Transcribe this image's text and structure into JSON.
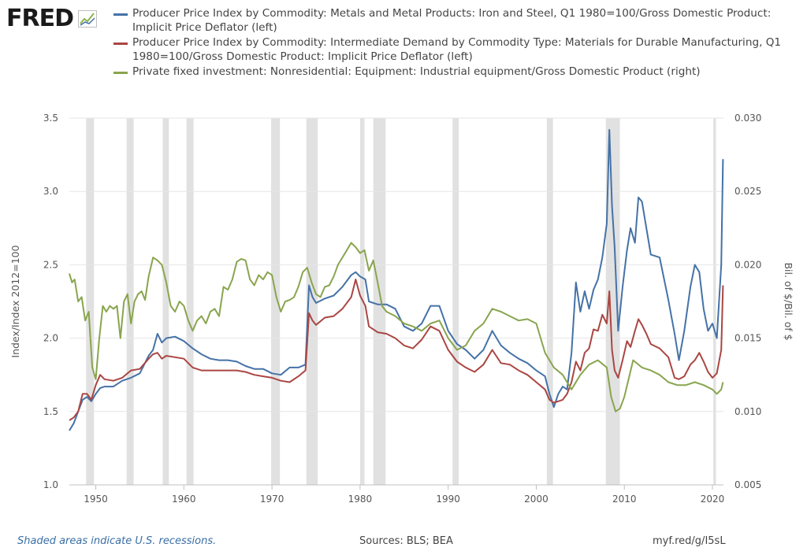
{
  "logo": {
    "text": "FRED"
  },
  "legend": [
    {
      "label": "Producer Price Index by Commodity: Metals and Metal Products: Iron and Steel, Q1 1980=100/Gross Domestic Product: Implicit Price Deflator (left)",
      "color": "#4572a7"
    },
    {
      "label": "Producer Price Index by Commodity: Intermediate Demand by Commodity Type: Materials for Durable Manufacturing, Q1 1980=100/Gross Domestic Product: Implicit Price Deflator (left)",
      "color": "#aa4643"
    },
    {
      "label": "Private fixed investment: Nonresidential: Equipment: Industrial equipment/Gross Domestic Product (right)",
      "color": "#89a54e"
    }
  ],
  "footer": {
    "note": "Shaded areas indicate U.S. recessions.",
    "sources": "Sources: BLS; BEA",
    "url": "myf.red/g/I5sL"
  },
  "chart_data": {
    "type": "line",
    "ylabel": "Index/Index 2012=100",
    "y2label": "Bil. of $/Bil. of $",
    "xlim": [
      1947,
      2021.25
    ],
    "ylim": [
      1.0,
      3.5
    ],
    "y2lim": [
      0.005,
      0.03
    ],
    "xticks": [
      1950,
      1960,
      1970,
      1980,
      1990,
      2000,
      2010,
      2020
    ],
    "yticks": [
      "1.0",
      "1.5",
      "2.0",
      "2.5",
      "3.0",
      "3.5"
    ],
    "y2ticks": [
      "0.005",
      "0.010",
      "0.015",
      "0.020",
      "0.025",
      "0.030"
    ],
    "grid": true,
    "recessions": [
      [
        1948.9,
        1949.8
      ],
      [
        1953.5,
        1954.3
      ],
      [
        1957.6,
        1958.3
      ],
      [
        1960.3,
        1961.1
      ],
      [
        1969.9,
        1970.9
      ],
      [
        1973.9,
        1975.2
      ],
      [
        1980.0,
        1980.5
      ],
      [
        1981.5,
        1982.9
      ],
      [
        1990.5,
        1991.2
      ],
      [
        2001.2,
        2001.9
      ],
      [
        2007.9,
        2009.5
      ],
      [
        2020.1,
        2020.4
      ]
    ],
    "series": [
      {
        "name": "Producer Price Index by Commodity: Metals and Metal Products: Iron and Steel, Q1 1980=100/Gross Domestic Product: Implicit Price Deflator (left)",
        "axis": "left",
        "color": "#4572a7",
        "x": [
          1947,
          1947.5,
          1948,
          1948.5,
          1949,
          1949.5,
          1950,
          1950.5,
          1951,
          1952,
          1953,
          1954,
          1955,
          1956,
          1956.5,
          1957,
          1957.5,
          1958,
          1959,
          1960,
          1961,
          1962,
          1963,
          1964,
          1965,
          1966,
          1967,
          1968,
          1969,
          1970,
          1971,
          1972,
          1973,
          1973.8,
          1974.2,
          1974.6,
          1975,
          1976,
          1977,
          1978,
          1979,
          1979.5,
          1980,
          1980.6,
          1981,
          1982,
          1983,
          1984,
          1985,
          1986,
          1987,
          1988,
          1989,
          1990,
          1991,
          1992,
          1993,
          1994,
          1995,
          1996,
          1997,
          1998,
          1999,
          2000,
          2001,
          2001.5,
          2002,
          2002.5,
          2003,
          2003.5,
          2004,
          2004.5,
          2005,
          2005.5,
          2006,
          2006.5,
          2007,
          2007.5,
          2008,
          2008.3,
          2008.6,
          2008.9,
          2009.3,
          2009.8,
          2010.3,
          2010.7,
          2011.2,
          2011.6,
          2012,
          2012.5,
          2013,
          2014,
          2015,
          2015.7,
          2016.2,
          2016.8,
          2017.5,
          2018,
          2018.5,
          2019,
          2019.5,
          2020,
          2020.5,
          2021,
          2021.2
        ],
        "y": [
          1.37,
          1.42,
          1.5,
          1.58,
          1.6,
          1.57,
          1.62,
          1.66,
          1.67,
          1.67,
          1.71,
          1.73,
          1.76,
          1.88,
          1.92,
          2.03,
          1.97,
          2.0,
          2.01,
          1.98,
          1.93,
          1.89,
          1.86,
          1.85,
          1.85,
          1.84,
          1.81,
          1.79,
          1.79,
          1.76,
          1.75,
          1.8,
          1.8,
          1.82,
          2.36,
          2.28,
          2.24,
          2.27,
          2.29,
          2.35,
          2.43,
          2.45,
          2.42,
          2.4,
          2.25,
          2.23,
          2.23,
          2.2,
          2.08,
          2.05,
          2.1,
          2.22,
          2.22,
          2.05,
          1.96,
          1.92,
          1.86,
          1.92,
          2.05,
          1.95,
          1.9,
          1.86,
          1.83,
          1.78,
          1.74,
          1.62,
          1.53,
          1.62,
          1.67,
          1.65,
          1.9,
          2.38,
          2.18,
          2.32,
          2.2,
          2.33,
          2.4,
          2.55,
          2.78,
          3.42,
          2.9,
          2.62,
          2.05,
          2.35,
          2.6,
          2.75,
          2.65,
          2.96,
          2.93,
          2.75,
          2.57,
          2.55,
          2.26,
          2.03,
          1.85,
          2.05,
          2.35,
          2.5,
          2.45,
          2.2,
          2.05,
          2.1,
          2.0,
          2.5,
          3.22
        ]
      },
      {
        "name": "Producer Price Index by Commodity: Intermediate Demand by Commodity Type: Materials for Durable Manufacturing, Q1 1980=100/Gross Domestic Product: Implicit Price Deflator (left)",
        "axis": "left",
        "color": "#aa4643",
        "x": [
          1947,
          1947.5,
          1948,
          1948.5,
          1949,
          1949.5,
          1950,
          1950.5,
          1951,
          1952,
          1953,
          1954,
          1955,
          1956,
          1956.5,
          1957,
          1957.5,
          1958,
          1959,
          1960,
          1961,
          1962,
          1963,
          1964,
          1965,
          1966,
          1967,
          1968,
          1969,
          1970,
          1971,
          1972,
          1973,
          1973.8,
          1974.2,
          1974.6,
          1975,
          1976,
          1977,
          1978,
          1979,
          1979.5,
          1980,
          1980.6,
          1981,
          1982,
          1983,
          1984,
          1985,
          1986,
          1987,
          1988,
          1989,
          1990,
          1991,
          1992,
          1993,
          1994,
          1995,
          1996,
          1997,
          1998,
          1999,
          2000,
          2001,
          2001.5,
          2002,
          2002.5,
          2003,
          2003.5,
          2004,
          2004.5,
          2005,
          2005.5,
          2006,
          2006.5,
          2007,
          2007.5,
          2008,
          2008.3,
          2008.6,
          2008.9,
          2009.3,
          2009.8,
          2010.3,
          2010.7,
          2011.2,
          2011.6,
          2012,
          2012.5,
          2013,
          2014,
          2015,
          2015.7,
          2016.2,
          2016.8,
          2017.5,
          2018,
          2018.5,
          2019,
          2019.5,
          2020,
          2020.5,
          2021,
          2021.2
        ],
        "y": [
          1.44,
          1.46,
          1.5,
          1.62,
          1.62,
          1.58,
          1.68,
          1.75,
          1.72,
          1.71,
          1.73,
          1.78,
          1.79,
          1.86,
          1.89,
          1.9,
          1.86,
          1.88,
          1.87,
          1.86,
          1.8,
          1.78,
          1.78,
          1.78,
          1.78,
          1.78,
          1.77,
          1.75,
          1.74,
          1.73,
          1.71,
          1.7,
          1.74,
          1.78,
          2.17,
          2.12,
          2.09,
          2.14,
          2.15,
          2.2,
          2.28,
          2.4,
          2.29,
          2.22,
          2.08,
          2.04,
          2.03,
          2.0,
          1.95,
          1.93,
          1.99,
          2.08,
          2.05,
          1.92,
          1.84,
          1.8,
          1.77,
          1.82,
          1.92,
          1.83,
          1.82,
          1.78,
          1.75,
          1.7,
          1.65,
          1.58,
          1.56,
          1.57,
          1.58,
          1.62,
          1.7,
          1.84,
          1.78,
          1.9,
          1.93,
          2.06,
          2.05,
          2.16,
          2.1,
          2.32,
          1.92,
          1.78,
          1.73,
          1.85,
          1.98,
          1.94,
          2.05,
          2.13,
          2.09,
          2.03,
          1.96,
          1.93,
          1.87,
          1.73,
          1.72,
          1.74,
          1.82,
          1.85,
          1.9,
          1.84,
          1.77,
          1.73,
          1.76,
          1.92,
          2.36
        ]
      },
      {
        "name": "Private fixed investment: Nonresidential: Equipment: Industrial equipment/Gross Domestic Product (right)",
        "axis": "right",
        "color": "#89a54e",
        "x": [
          1947,
          1947.3,
          1947.6,
          1948,
          1948.4,
          1948.8,
          1949.2,
          1949.6,
          1950,
          1950.4,
          1950.8,
          1951.2,
          1951.6,
          1952,
          1952.4,
          1952.8,
          1953.2,
          1953.6,
          1954,
          1954.4,
          1954.8,
          1955.2,
          1955.6,
          1956,
          1956.5,
          1957,
          1957.5,
          1958,
          1958.5,
          1959,
          1959.5,
          1960,
          1960.5,
          1961,
          1961.5,
          1962,
          1962.5,
          1963,
          1963.5,
          1964,
          1964.5,
          1965,
          1965.5,
          1966,
          1966.5,
          1967,
          1967.5,
          1968,
          1968.5,
          1969,
          1969.5,
          1970,
          1970.5,
          1971,
          1971.5,
          1972,
          1972.5,
          1973,
          1973.5,
          1974,
          1974.5,
          1975,
          1975.5,
          1976,
          1976.5,
          1977,
          1977.5,
          1978,
          1978.5,
          1979,
          1979.5,
          1980,
          1980.5,
          1981,
          1981.5,
          1982,
          1982.5,
          1983,
          1984,
          1985,
          1986,
          1987,
          1988,
          1989,
          1990,
          1991,
          1992,
          1993,
          1994,
          1995,
          1996,
          1997,
          1998,
          1999,
          2000,
          2001,
          2002,
          2003,
          2004,
          2005,
          2006,
          2007,
          2008,
          2008.5,
          2009,
          2009.5,
          2010,
          2011,
          2012,
          2013,
          2014,
          2015,
          2016,
          2017,
          2018,
          2019,
          2020,
          2020.5,
          2021,
          2021.2
        ],
        "y": [
          0.0194,
          0.0188,
          0.019,
          0.0175,
          0.0178,
          0.0162,
          0.0168,
          0.013,
          0.0122,
          0.015,
          0.0172,
          0.0168,
          0.0172,
          0.017,
          0.0172,
          0.015,
          0.0175,
          0.018,
          0.016,
          0.0175,
          0.018,
          0.0182,
          0.0176,
          0.0192,
          0.0205,
          0.0203,
          0.02,
          0.0188,
          0.0172,
          0.0168,
          0.0175,
          0.0172,
          0.0162,
          0.0155,
          0.0162,
          0.0165,
          0.016,
          0.0168,
          0.017,
          0.0165,
          0.0185,
          0.0183,
          0.019,
          0.0202,
          0.0204,
          0.0203,
          0.019,
          0.0186,
          0.0193,
          0.019,
          0.0195,
          0.0193,
          0.0178,
          0.0168,
          0.0175,
          0.0176,
          0.0178,
          0.0185,
          0.0195,
          0.0198,
          0.0188,
          0.018,
          0.0178,
          0.0185,
          0.0186,
          0.0192,
          0.02,
          0.0205,
          0.021,
          0.0215,
          0.0212,
          0.0208,
          0.021,
          0.0196,
          0.0203,
          0.0188,
          0.0172,
          0.0168,
          0.0165,
          0.016,
          0.0158,
          0.0155,
          0.016,
          0.0162,
          0.015,
          0.0142,
          0.0145,
          0.0155,
          0.016,
          0.017,
          0.0168,
          0.0165,
          0.0162,
          0.0163,
          0.016,
          0.014,
          0.013,
          0.0125,
          0.0115,
          0.0125,
          0.0132,
          0.0135,
          0.013,
          0.011,
          0.01,
          0.0102,
          0.011,
          0.0135,
          0.013,
          0.0128,
          0.0125,
          0.012,
          0.0118,
          0.0118,
          0.012,
          0.0118,
          0.0115,
          0.0112,
          0.0115,
          0.012
        ]
      }
    ]
  }
}
